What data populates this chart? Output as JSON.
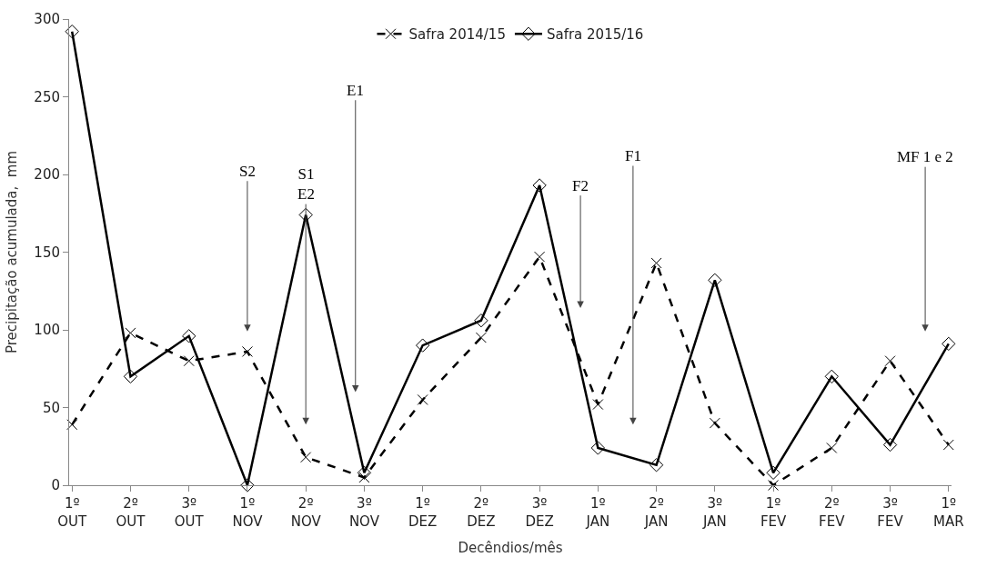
{
  "chart_data": {
    "type": "line",
    "xlabel": "Decêndios/mês",
    "ylabel": "Precipitação acumulada,  mm",
    "categories": [
      "1º OUT",
      "2º OUT",
      "3º OUT",
      "1º NOV",
      "2º NOV",
      "3º NOV",
      "1º DEZ",
      "2º DEZ",
      "3º DEZ",
      "1º JAN",
      "2º JAN",
      "3º JAN",
      "1º FEV",
      "2º FEV",
      "3º FEV",
      "1º MAR"
    ],
    "series": [
      {
        "name": "Safra 2014/15",
        "color": "#000000",
        "marker": "cross",
        "line_style": "dashed",
        "values": [
          39,
          98,
          80,
          86,
          18,
          5,
          55,
          95,
          147,
          52,
          143,
          40,
          0,
          24,
          80,
          26
        ]
      },
      {
        "name": "Safra 2015/16",
        "color": "#000000",
        "marker": "diamond",
        "line_style": "solid",
        "values": [
          292,
          70,
          96,
          0,
          174,
          8,
          90,
          106,
          193,
          24,
          13,
          132,
          8,
          70,
          26,
          91
        ]
      }
    ],
    "ylim": [
      0,
      300
    ],
    "yticks": [
      0,
      50,
      100,
      150,
      200,
      250,
      300
    ],
    "legend": "top",
    "annotations": [
      "S2",
      "S1\nE2",
      "E1",
      "F2",
      "F1",
      "MF 1 e 2"
    ]
  }
}
